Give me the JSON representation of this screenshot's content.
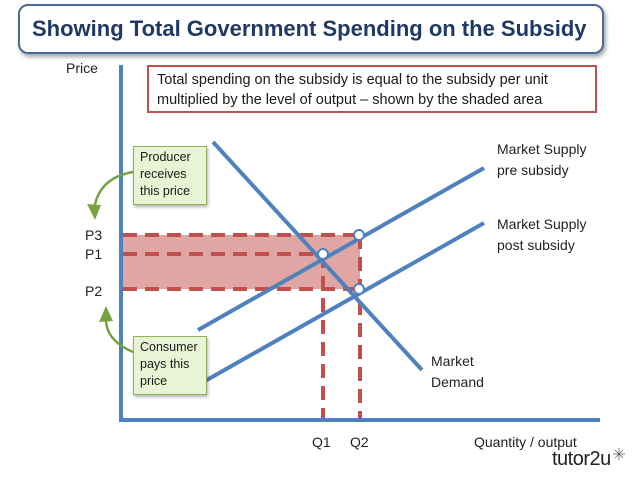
{
  "title": "Showing Total Government Spending on the Subsidy",
  "note": "Total spending on the subsidy is equal to the subsidy per unit multiplied by the level of output – shown by the shaded area",
  "axes": {
    "y_label": "Price",
    "x_label": "Quantity / output"
  },
  "price_levels": {
    "p3": "P3",
    "p1": "P1",
    "p2": "P2"
  },
  "quantity_levels": {
    "q1": "Q1",
    "q2": "Q2"
  },
  "curves": {
    "supply_pre": "Market Supply pre subsidy",
    "supply_post": "Market Supply post subsidy",
    "demand": "Market Demand"
  },
  "callouts": {
    "producer": "Producer receives this price",
    "consumer": "Consumer pays this price"
  },
  "logo": "tutor2u",
  "colors": {
    "curve": "#4f81bd",
    "dashed": "#c0504d",
    "shaded": "#d99694",
    "title": "#1f3864",
    "callout_fill": "#e8f4d4",
    "arrow": "#77a340"
  }
}
